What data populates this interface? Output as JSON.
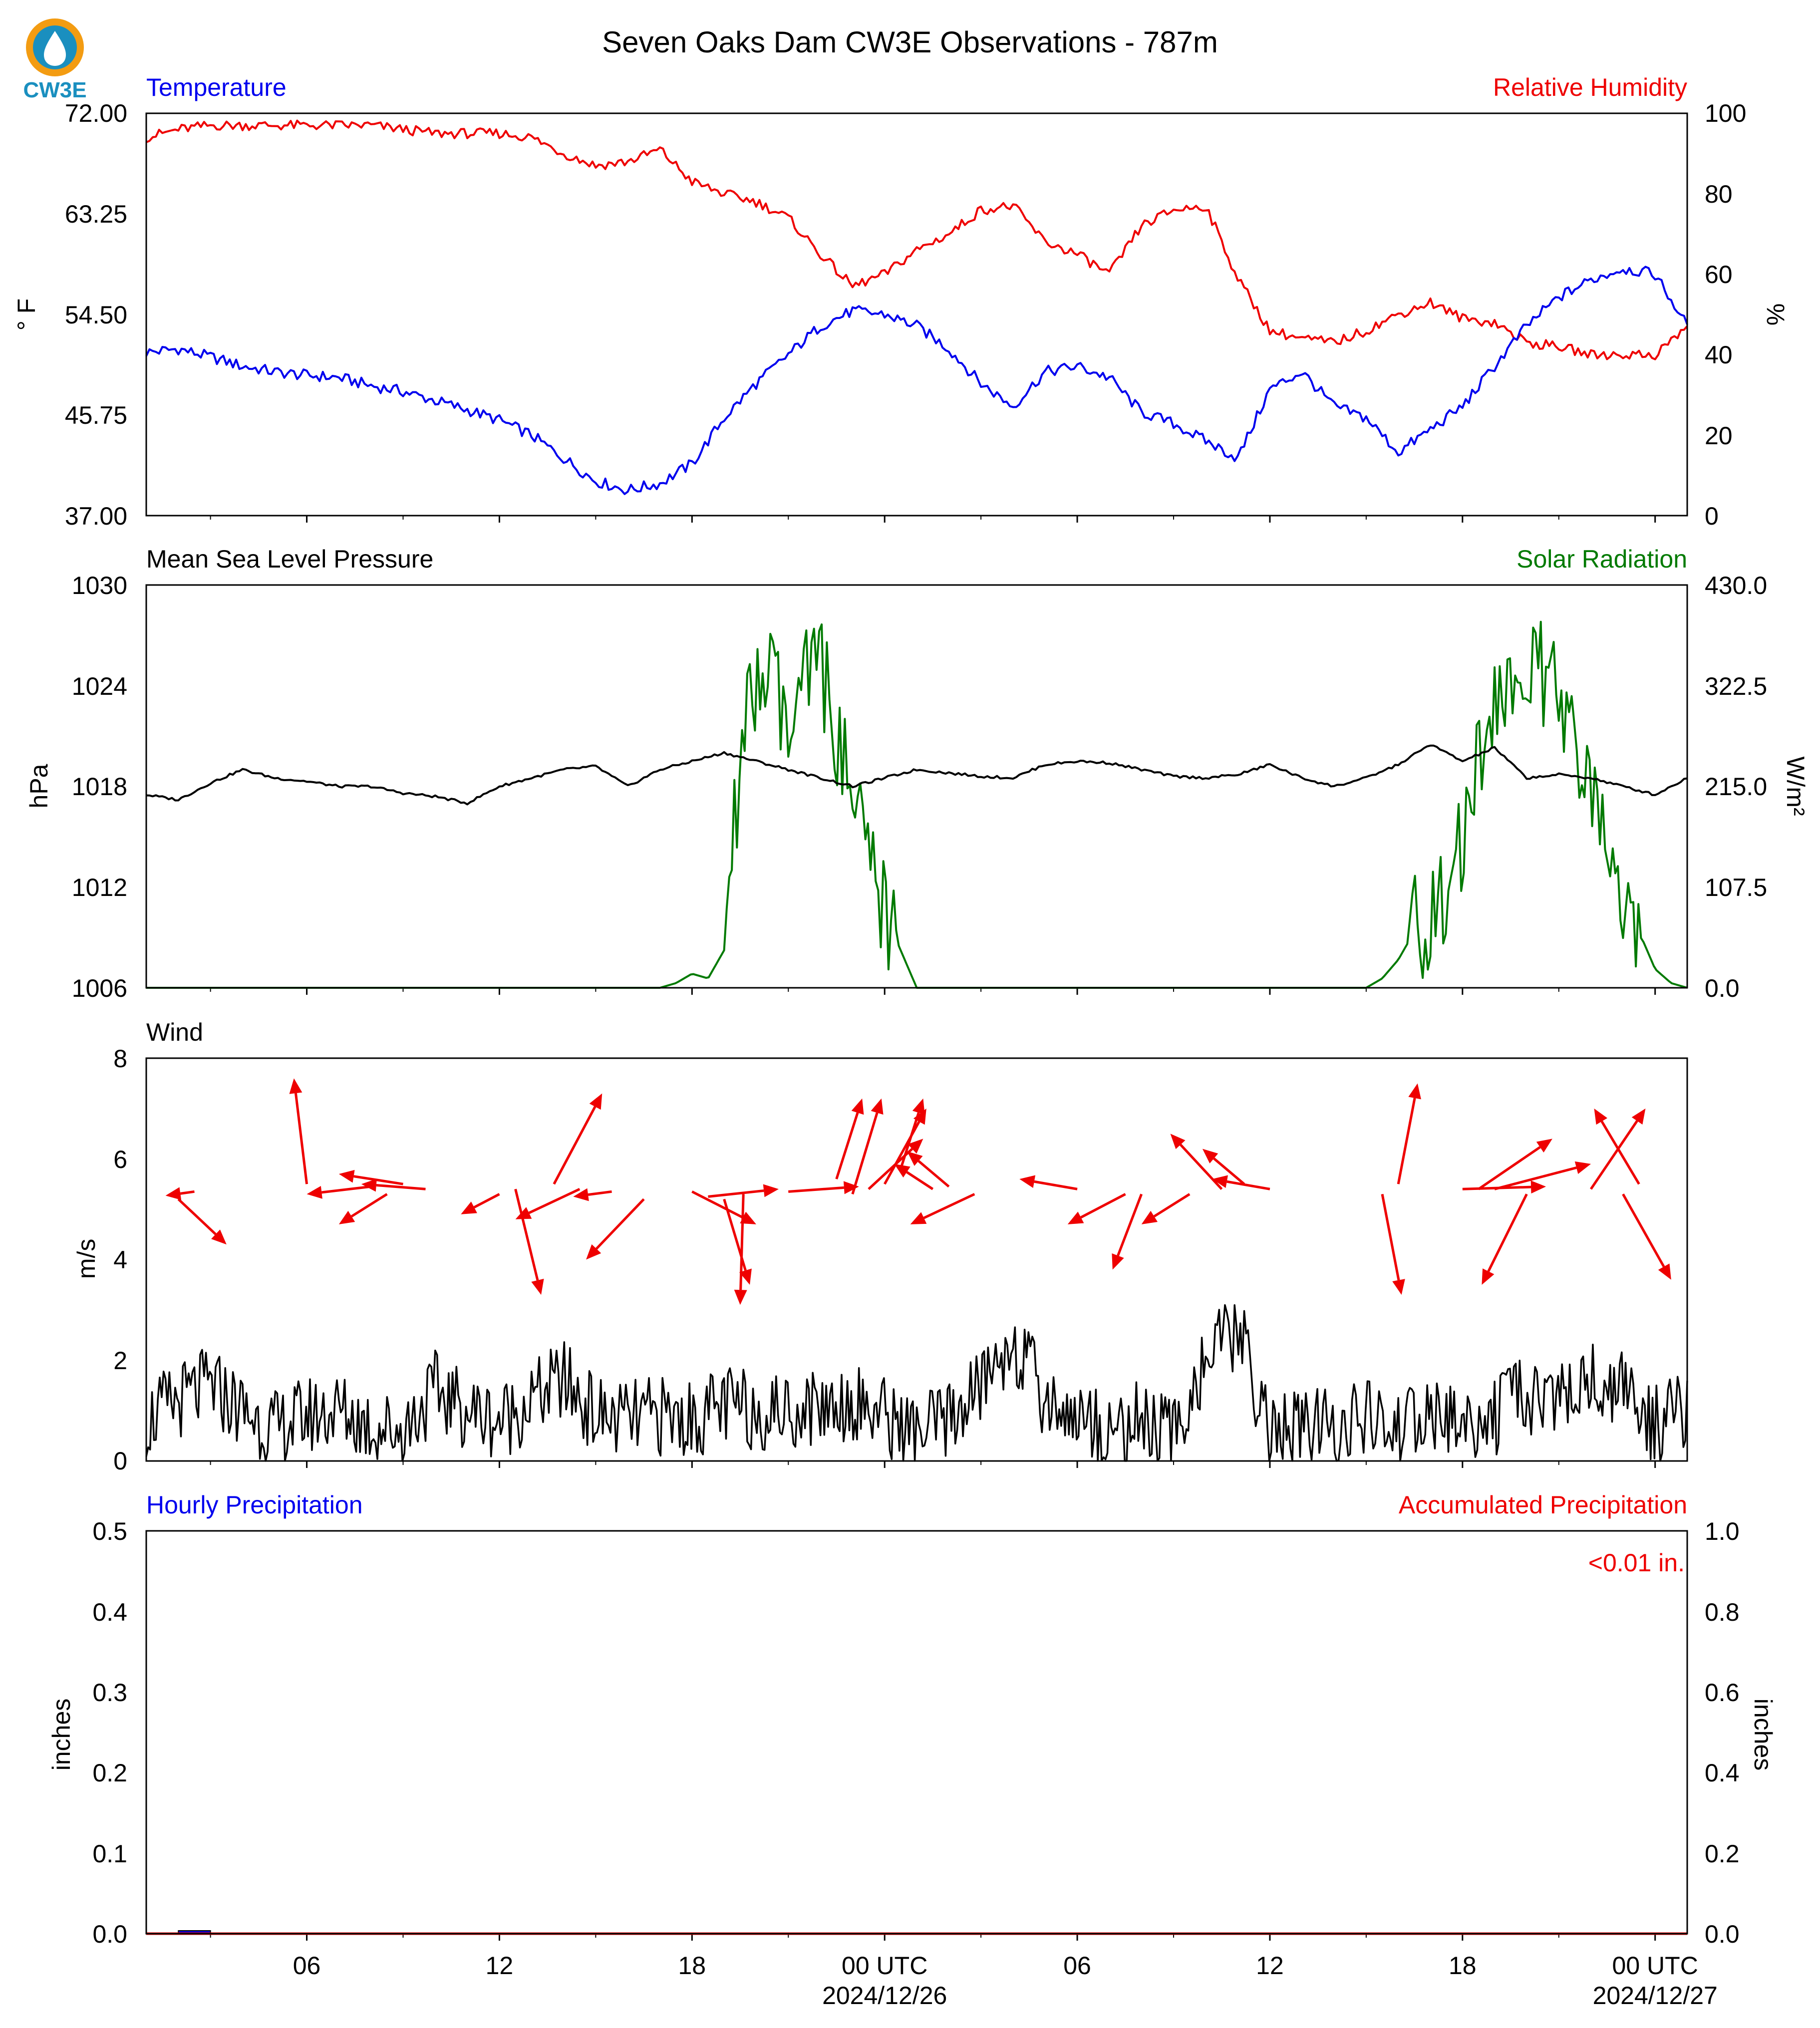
{
  "figure": {
    "title": "Seven Oaks Dam CW3E Observations - 787m",
    "logo_text": "CW3E",
    "colors": {
      "temperature": "#0000ee",
      "humidity": "#ee0000",
      "pressure": "#000000",
      "solar": "#007a00",
      "wind": "#000000",
      "wind_vector": "#ee0000",
      "precip_hourly": "#0000ee",
      "precip_accum": "#ee0000"
    }
  },
  "chart_data": [
    {
      "type": "line",
      "left_title": "Temperature",
      "right_title": "Relative Humidity",
      "ylabel": "° F",
      "ylabel_right": "%",
      "ylim": [
        37.0,
        72.0
      ],
      "ylim_right": [
        0,
        100
      ],
      "yticks": [
        "37.00",
        "45.75",
        "54.50",
        "63.25",
        "72.00"
      ],
      "yticks_right": [
        "0",
        "20",
        "40",
        "60",
        "80",
        "100"
      ],
      "xlim_hours": [
        0,
        48
      ],
      "series": [
        {
          "name": "Temperature",
          "axis": "left",
          "x": [
            0,
            1,
            2,
            3,
            4,
            5,
            6,
            7,
            8,
            9,
            10,
            11,
            12,
            13,
            14,
            15,
            16,
            17,
            18,
            19,
            20,
            21,
            22,
            23,
            24,
            25,
            26,
            27,
            28,
            29,
            30,
            31,
            32,
            33,
            34,
            35,
            36,
            37,
            38,
            39,
            40,
            41,
            42,
            43,
            44,
            45,
            46,
            47,
            48
          ],
          "y": [
            51.2,
            51.5,
            50.8,
            50.0,
            49.5,
            49.2,
            49.0,
            48.3,
            47.8,
            47.0,
            46.2,
            45.3,
            44.0,
            42.0,
            40.0,
            39.2,
            39.8,
            41.5,
            45.5,
            48.5,
            51.0,
            53.5,
            54.8,
            54.5,
            53.5,
            51.5,
            48.5,
            46.5,
            49.5,
            50.0,
            49.0,
            46.0,
            45.0,
            43.5,
            42.0,
            48.0,
            49.5,
            46.5,
            45.5,
            42.5,
            44.5,
            46.5,
            50.0,
            53.5,
            56.0,
            57.5,
            58.5,
            58.0,
            53.5
          ]
        },
        {
          "name": "Relative Humidity",
          "axis": "right",
          "x": [
            0,
            1,
            2,
            3,
            4,
            5,
            6,
            7,
            8,
            9,
            10,
            11,
            12,
            13,
            14,
            15,
            16,
            17,
            18,
            19,
            20,
            21,
            22,
            23,
            24,
            25,
            26,
            27,
            28,
            29,
            30,
            31,
            32,
            33,
            34,
            35,
            36,
            37,
            38,
            39,
            40,
            41,
            42,
            43,
            44,
            45,
            46,
            47,
            48
          ],
          "y": [
            94,
            96,
            97,
            97,
            97,
            97,
            97,
            97,
            96,
            95,
            95,
            95,
            94,
            90,
            87,
            88,
            91,
            83,
            80,
            78,
            74,
            65,
            57,
            60,
            66,
            70,
            76,
            77,
            68,
            65,
            60,
            72,
            76,
            77,
            59,
            46,
            44,
            43,
            46,
            50,
            53,
            49,
            48,
            43,
            42,
            40,
            40,
            40,
            47
          ]
        }
      ]
    },
    {
      "type": "line",
      "left_title": "Mean Sea Level Pressure",
      "right_title": "Solar Radiation",
      "ylabel": "hPa",
      "ylabel_right": "W/m²",
      "ylim": [
        1006,
        1030
      ],
      "ylim_right": [
        0.0,
        430.0
      ],
      "yticks": [
        "1006",
        "1012",
        "1018",
        "1024",
        "1030"
      ],
      "yticks_right": [
        "0.0",
        "107.5",
        "215.0",
        "322.5",
        "430.0"
      ],
      "xlim_hours": [
        0,
        48
      ],
      "series": [
        {
          "name": "Mean Sea Level Pressure",
          "axis": "left",
          "x": [
            0,
            1,
            2,
            3,
            4,
            5,
            6,
            7,
            8,
            9,
            10,
            11,
            12,
            13,
            14,
            15,
            16,
            17,
            18,
            19,
            20,
            21,
            22,
            23,
            24,
            25,
            26,
            27,
            28,
            29,
            30,
            31,
            32,
            33,
            34,
            35,
            36,
            37,
            38,
            39,
            40,
            41,
            42,
            43,
            44,
            45,
            46,
            47,
            48
          ],
          "y": [
            1017.5,
            1017.2,
            1018.2,
            1019.0,
            1018.5,
            1018.3,
            1018.0,
            1018.0,
            1017.6,
            1017.4,
            1017.0,
            1018.0,
            1018.5,
            1019.0,
            1019.2,
            1018.0,
            1019.0,
            1019.5,
            1020.0,
            1019.5,
            1019.0,
            1018.5,
            1018.0,
            1018.5,
            1019.0,
            1018.8,
            1018.6,
            1018.5,
            1019.3,
            1019.5,
            1019.4,
            1019.0,
            1018.6,
            1018.5,
            1018.7,
            1019.3,
            1018.5,
            1018.0,
            1018.5,
            1019.3,
            1020.5,
            1019.5,
            1020.3,
            1018.5,
            1018.7,
            1018.5,
            1018.0,
            1017.5,
            1018.5
          ]
        },
        {
          "name": "Solar Radiation",
          "axis": "right",
          "x": [
            0,
            2,
            4,
            6,
            8,
            10,
            12,
            14,
            15,
            16,
            16.5,
            17,
            17.5,
            18,
            18.5,
            19,
            19.5,
            20,
            20.5,
            21,
            21.5,
            22,
            22.5,
            23,
            23.5,
            24,
            26,
            28,
            30,
            32,
            34,
            36,
            38,
            38.5,
            39,
            39.5,
            40,
            40.5,
            41,
            41.5,
            42,
            42.5,
            43,
            43.5,
            44,
            44.5,
            45,
            45.5,
            46,
            46.5,
            47,
            47.5,
            48
          ],
          "y": [
            0,
            0,
            0,
            0,
            0,
            0,
            0,
            0,
            0,
            0,
            5,
            15,
            10,
            40,
            250,
            320,
            330,
            260,
            320,
            350,
            270,
            190,
            130,
            80,
            40,
            0,
            0,
            0,
            0,
            0,
            0,
            0,
            0,
            10,
            30,
            60,
            80,
            100,
            150,
            250,
            300,
            320,
            340,
            330,
            300,
            250,
            200,
            150,
            100,
            60,
            20,
            5,
            0
          ]
        }
      ]
    },
    {
      "type": "line",
      "left_title": "Wind",
      "ylabel": "m/s",
      "ylim": [
        0,
        8
      ],
      "yticks": [
        "0",
        "2",
        "4",
        "6",
        "8"
      ],
      "xlim_hours": [
        0,
        48
      ],
      "series": [
        {
          "name": "Wind",
          "axis": "left",
          "x": [
            0,
            1,
            2,
            3,
            4,
            5,
            6,
            7,
            8,
            9,
            10,
            11,
            12,
            13,
            14,
            15,
            16,
            17,
            18,
            19,
            20,
            21,
            22,
            23,
            24,
            25,
            26,
            27,
            28,
            29,
            30,
            31,
            32,
            33,
            34,
            35,
            36,
            37,
            38,
            39,
            40,
            41,
            42,
            43,
            44,
            45,
            46,
            47,
            48
          ],
          "y": [
            0.8,
            1.2,
            1.5,
            1.0,
            0.6,
            0.9,
            1.0,
            0.7,
            0.6,
            1.4,
            1.0,
            0.8,
            1.2,
            1.6,
            0.9,
            0.8,
            0.9,
            0.8,
            1.1,
            1.0,
            1.0,
            1.1,
            1.2,
            0.9,
            0.5,
            0.8,
            1.5,
            2.4,
            1.2,
            0.9,
            0.6,
            0.8,
            0.5,
            2.0,
            2.6,
            0.6,
            0.6,
            0.7,
            0.8,
            0.6,
            0.9,
            0.7,
            0.9,
            1.3,
            1.2,
            1.6,
            1.4,
            0.7,
            1.0
          ]
        }
      ],
      "wind_vectors": [
        {
          "x": 1.5,
          "y": 5.35,
          "dx": -0.9,
          "dy": -0.08
        },
        {
          "x": 1.0,
          "y": 5.2,
          "dx": 1.5,
          "dy": -0.9
        },
        {
          "x": 5.0,
          "y": 5.5,
          "dx": -0.4,
          "dy": 2.1
        },
        {
          "x": 7.5,
          "y": 5.3,
          "dx": -1.5,
          "dy": -0.6
        },
        {
          "x": 7.0,
          "y": 5.45,
          "dx": -2.0,
          "dy": -0.15
        },
        {
          "x": 8.0,
          "y": 5.5,
          "dx": -2.0,
          "dy": 0.2
        },
        {
          "x": 8.7,
          "y": 5.4,
          "dx": -2.0,
          "dy": 0.1
        },
        {
          "x": 11.0,
          "y": 5.3,
          "dx": -1.2,
          "dy": -0.4
        },
        {
          "x": 11.5,
          "y": 5.4,
          "dx": 0.8,
          "dy": -2.1
        },
        {
          "x": 13.5,
          "y": 5.4,
          "dx": -2.0,
          "dy": -0.6
        },
        {
          "x": 14.5,
          "y": 5.35,
          "dx": -1.2,
          "dy": -0.1
        },
        {
          "x": 12.7,
          "y": 5.5,
          "dx": 1.5,
          "dy": 1.8
        },
        {
          "x": 15.5,
          "y": 5.2,
          "dx": -1.8,
          "dy": -1.2
        },
        {
          "x": 17.5,
          "y": 5.25,
          "dx": 2.2,
          "dy": 0.15
        },
        {
          "x": 18.0,
          "y": 5.2,
          "dx": 0.8,
          "dy": -1.7
        },
        {
          "x": 17.0,
          "y": 5.35,
          "dx": 2.0,
          "dy": -0.65
        },
        {
          "x": 18.6,
          "y": 5.3,
          "dx": -0.1,
          "dy": -2.2
        },
        {
          "x": 20.0,
          "y": 5.35,
          "dx": 2.2,
          "dy": 0.1
        },
        {
          "x": 21.5,
          "y": 5.6,
          "dx": 0.8,
          "dy": 1.6
        },
        {
          "x": 22.0,
          "y": 5.3,
          "dx": 0.9,
          "dy": 1.9
        },
        {
          "x": 22.5,
          "y": 5.4,
          "dx": 1.7,
          "dy": 1.0
        },
        {
          "x": 23.0,
          "y": 5.5,
          "dx": 1.3,
          "dy": 1.5
        },
        {
          "x": 23.5,
          "y": 5.8,
          "dx": 0.7,
          "dy": 1.4
        },
        {
          "x": 25.0,
          "y": 5.45,
          "dx": -1.3,
          "dy": 0.7
        },
        {
          "x": 24.5,
          "y": 5.4,
          "dx": -1.2,
          "dy": 0.5
        },
        {
          "x": 25.8,
          "y": 5.3,
          "dx": -2.0,
          "dy": -0.6
        },
        {
          "x": 29.0,
          "y": 5.4,
          "dx": -1.8,
          "dy": 0.2
        },
        {
          "x": 30.5,
          "y": 5.3,
          "dx": -1.8,
          "dy": -0.6
        },
        {
          "x": 31.0,
          "y": 5.3,
          "dx": -0.9,
          "dy": -1.5
        },
        {
          "x": 32.5,
          "y": 5.3,
          "dx": -1.5,
          "dy": -0.6
        },
        {
          "x": 33.5,
          "y": 5.4,
          "dx": -1.6,
          "dy": 1.1
        },
        {
          "x": 34.2,
          "y": 5.5,
          "dx": -1.3,
          "dy": 0.7
        },
        {
          "x": 35.0,
          "y": 5.4,
          "dx": -1.8,
          "dy": 0.2
        },
        {
          "x": 39.0,
          "y": 5.5,
          "dx": 0.6,
          "dy": 2.0
        },
        {
          "x": 38.5,
          "y": 5.3,
          "dx": 0.6,
          "dy": -2.0
        },
        {
          "x": 41.0,
          "y": 5.4,
          "dx": 2.6,
          "dy": 0.05
        },
        {
          "x": 41.5,
          "y": 5.4,
          "dx": 2.3,
          "dy": 1.0
        },
        {
          "x": 43.0,
          "y": 5.3,
          "dx": -1.4,
          "dy": -1.8
        },
        {
          "x": 42.0,
          "y": 5.4,
          "dx": 3.0,
          "dy": 0.5
        },
        {
          "x": 46.5,
          "y": 5.5,
          "dx": -1.4,
          "dy": 1.5
        },
        {
          "x": 45.0,
          "y": 5.4,
          "dx": 1.7,
          "dy": 1.6
        },
        {
          "x": 46.0,
          "y": 5.3,
          "dx": 1.5,
          "dy": -1.7
        }
      ]
    },
    {
      "type": "bar",
      "left_title": "Hourly Precipitation",
      "right_title": "Accumulated Precipitation",
      "ylabel": "inches",
      "ylabel_right": "inches",
      "ylim": [
        0.0,
        0.5
      ],
      "ylim_right": [
        0.0,
        1.0
      ],
      "yticks": [
        "0.0",
        "0.1",
        "0.2",
        "0.3",
        "0.4",
        "0.5"
      ],
      "yticks_right": [
        "0.0",
        "0.2",
        "0.4",
        "0.6",
        "0.8",
        "1.0"
      ],
      "annotation": "<0.01 in.",
      "xlim_hours": [
        0,
        48
      ],
      "hourly_bars": [
        {
          "x": 1.5,
          "value": 0.003
        }
      ],
      "accumulated": {
        "x": [
          0,
          48
        ],
        "y": [
          0.0,
          0.0
        ]
      },
      "xticks": [
        {
          "h": 5,
          "label": "06",
          "sub": ""
        },
        {
          "h": 11,
          "label": "12",
          "sub": ""
        },
        {
          "h": 17,
          "label": "18",
          "sub": ""
        },
        {
          "h": 23,
          "label": "00 UTC",
          "sub": "2024/12/26"
        },
        {
          "h": 29,
          "label": "06",
          "sub": ""
        },
        {
          "h": 35,
          "label": "12",
          "sub": ""
        },
        {
          "h": 41,
          "label": "18",
          "sub": ""
        },
        {
          "h": 47,
          "label": "00 UTC",
          "sub": "2024/12/27"
        }
      ]
    }
  ]
}
